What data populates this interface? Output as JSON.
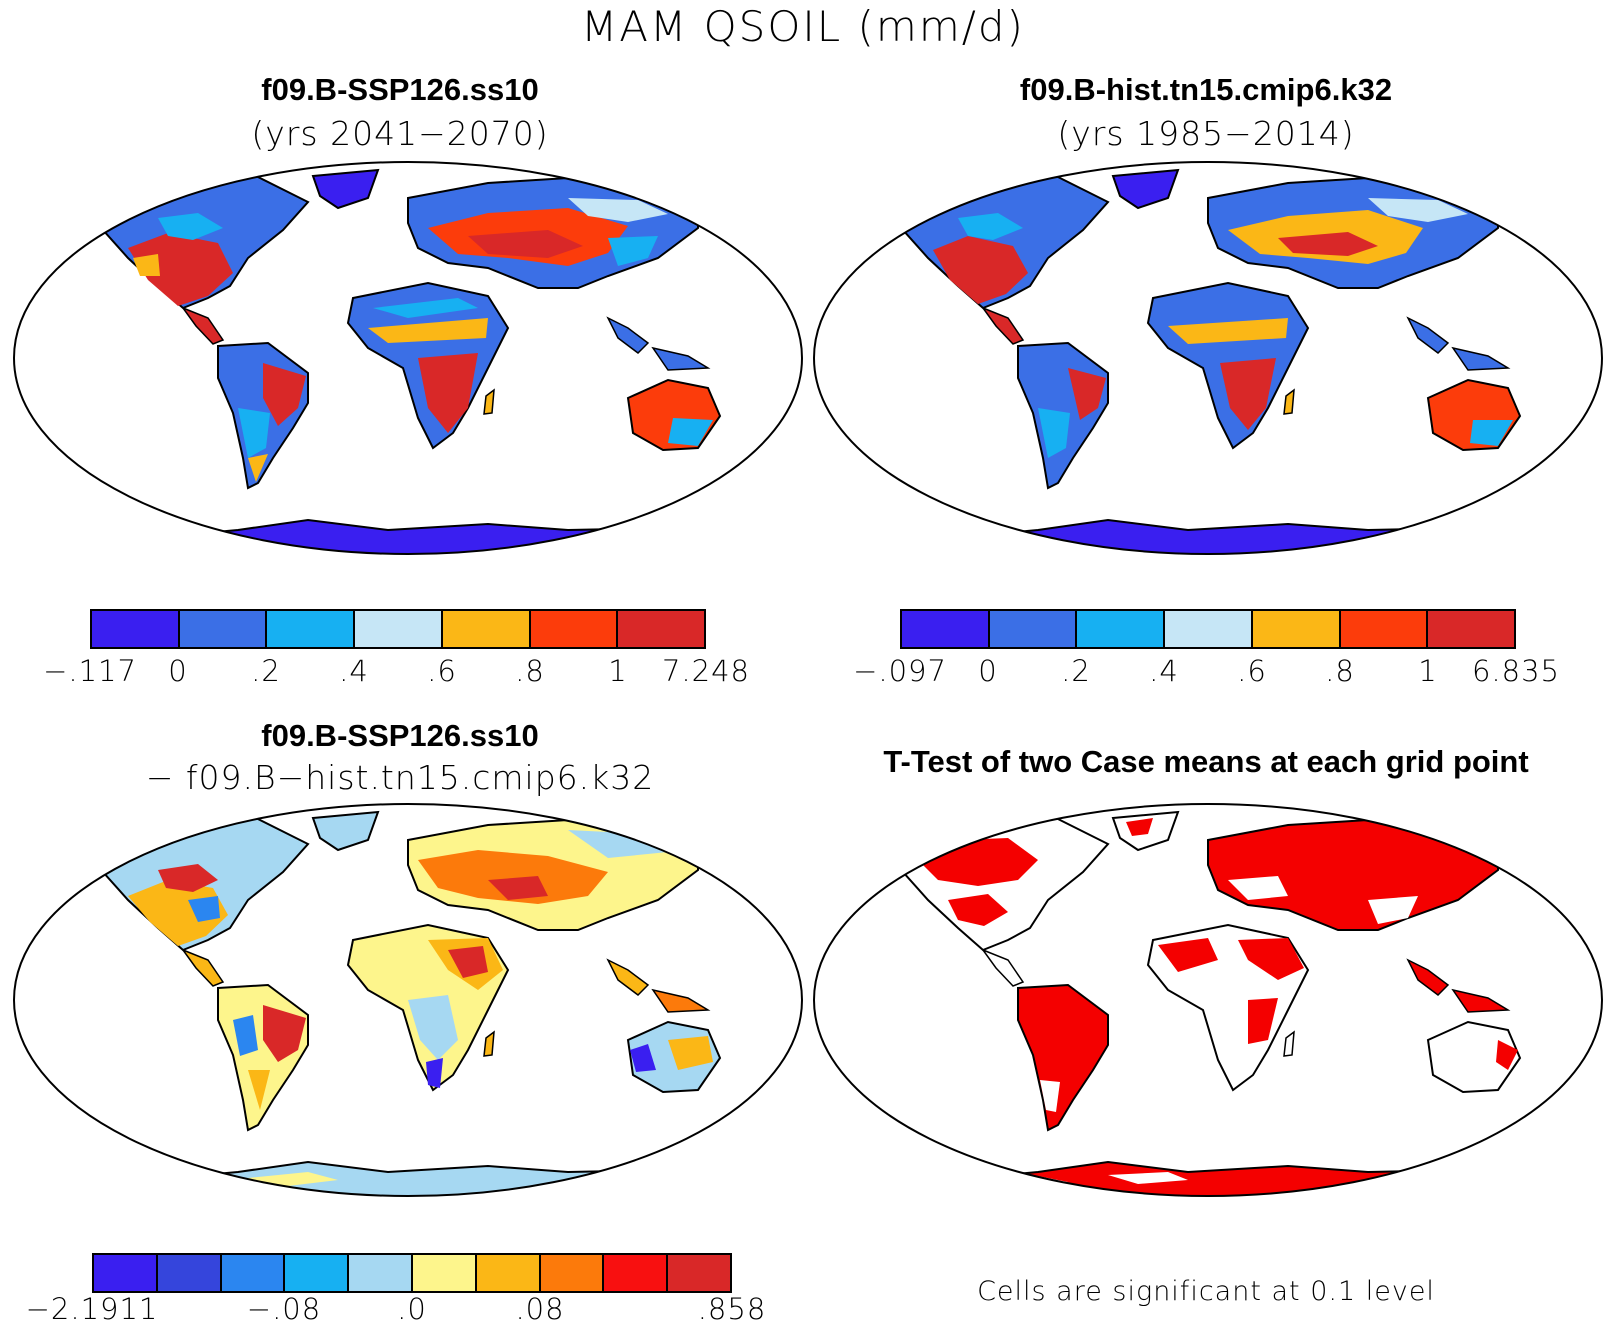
{
  "figure": {
    "title": "MAM QSOIL (mm/d)"
  },
  "panels": [
    {
      "id": "top-left",
      "title": "f09.B-SSP126.ss10",
      "subtitle": "(yrs 2041−2070)",
      "colorbar": {
        "colors": [
          "#3a1ff0",
          "#3b6fe6",
          "#17b0f2",
          "#c6e6f6",
          "#fbb716",
          "#fc3c0b",
          "#d92828"
        ],
        "labels": [
          "−.117",
          "0",
          ".2",
          ".4",
          ".6",
          ".8",
          "1",
          "7.248"
        ]
      }
    },
    {
      "id": "top-right",
      "title": "f09.B-hist.tn15.cmip6.k32",
      "subtitle": "(yrs 1985−2014)",
      "colorbar": {
        "colors": [
          "#3a1ff0",
          "#3b6fe6",
          "#17b0f2",
          "#c6e6f6",
          "#fbb716",
          "#fc3c0b",
          "#d92828"
        ],
        "labels": [
          "−.097",
          "0",
          ".2",
          ".4",
          ".6",
          ".8",
          "1",
          "6.835"
        ]
      }
    },
    {
      "id": "bottom-left",
      "title": "f09.B-SSP126.ss10",
      "subtitle": "− f09.B−hist.tn15.cmip6.k32",
      "colorbar": {
        "colors": [
          "#3a1ff0",
          "#3545dc",
          "#2b86f0",
          "#17b0f2",
          "#a6d8f2",
          "#fdf58c",
          "#fbb716",
          "#fc7a0b",
          "#f81010",
          "#d92828"
        ],
        "labels": [
          "−2.1911",
          "−.08",
          ".0",
          ".08",
          ".858"
        ]
      }
    },
    {
      "id": "bottom-right",
      "title": "T-Test of two Case means at each grid point",
      "note": "Cells are significant at 0.1 level",
      "colors": {
        "significant": "#f40000"
      }
    }
  ]
}
